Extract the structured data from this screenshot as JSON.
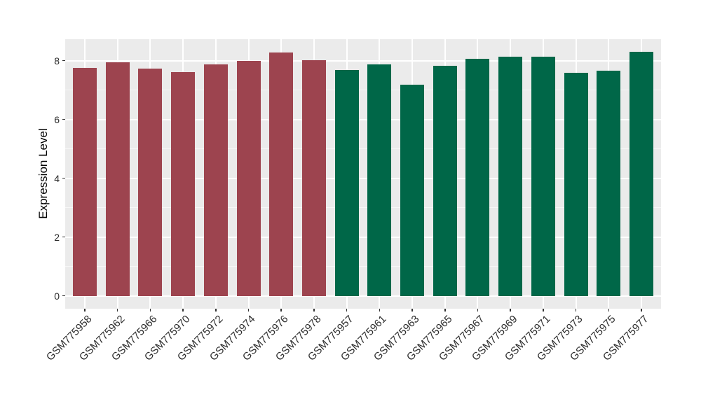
{
  "chart_data": {
    "type": "bar",
    "title": "",
    "xlabel": "",
    "ylabel": "Expression Level",
    "categories": [
      "GSM775958",
      "GSM775962",
      "GSM775966",
      "GSM775970",
      "GSM775972",
      "GSM775974",
      "GSM775976",
      "GSM775978",
      "GSM775957",
      "GSM775961",
      "GSM775963",
      "GSM775965",
      "GSM775967",
      "GSM775969",
      "GSM775971",
      "GSM775973",
      "GSM775975",
      "GSM775977"
    ],
    "values": [
      7.76,
      7.95,
      7.73,
      7.6,
      7.87,
      7.99,
      8.28,
      8.02,
      7.68,
      7.87,
      7.18,
      7.83,
      8.07,
      8.14,
      8.14,
      7.59,
      7.66,
      8.3
    ],
    "bar_colors": [
      "#9D444F",
      "#9D444F",
      "#9D444F",
      "#9D444F",
      "#9D444F",
      "#9D444F",
      "#9D444F",
      "#9D444F",
      "#006748",
      "#006748",
      "#006748",
      "#006748",
      "#006748",
      "#006748",
      "#006748",
      "#006748",
      "#006748",
      "#006748"
    ],
    "group_colors": {
      "left_group": "#9D444F",
      "right_group": "#006748"
    },
    "y_ticks": [
      0,
      2,
      4,
      6,
      8
    ],
    "y_minor_ticks": [
      1,
      3,
      5,
      7
    ],
    "ylim": [
      -0.44,
      8.73
    ],
    "x_tick_angle_deg": 45,
    "grid": true,
    "legend_position": "none",
    "panel_background": "#EBEBEB",
    "gridline_color": "#FFFFFF"
  }
}
